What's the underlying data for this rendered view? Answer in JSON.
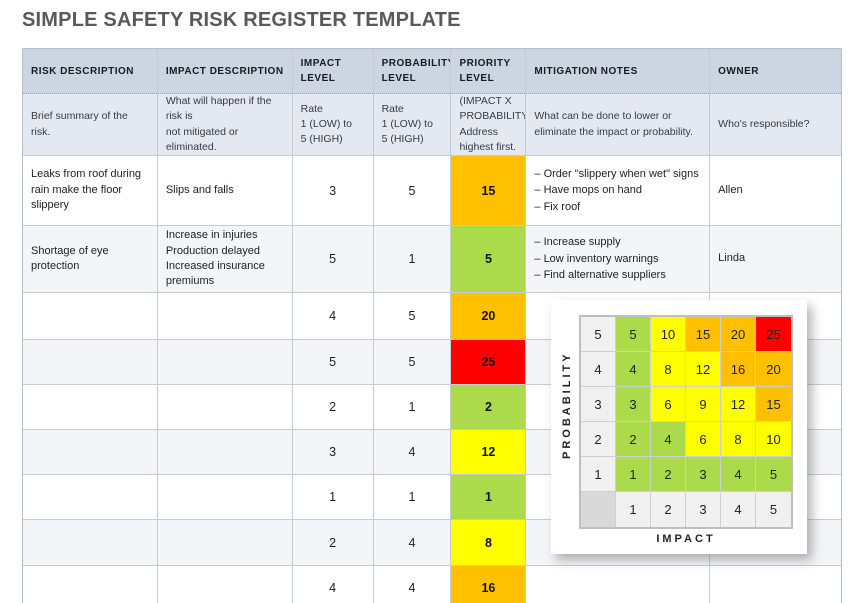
{
  "title": "SIMPLE SAFETY RISK REGISTER TEMPLATE",
  "colors": {
    "green": "#ABDB4B",
    "yellow": "#FFFF00",
    "orange": "#FFC000",
    "red": "#FF0000",
    "header_bg": "#CCD5E2",
    "desc_bg": "#E3E8F1",
    "alt_row_bg": "#F3F5F9"
  },
  "table": {
    "column_keys": [
      "risk-description",
      "impact-description",
      "impact-level",
      "probability-level",
      "priority-level",
      "mitigation-notes",
      "owner"
    ],
    "headers": [
      "RISK DESCRIPTION",
      "IMPACT DESCRIPTION",
      "IMPACT\nLEVEL",
      "PROBABILITY\nLEVEL",
      "PRIORITY\nLEVEL",
      "MITIGATION NOTES",
      "OWNER"
    ],
    "descriptions": [
      "Brief summary of the risk.",
      "What will happen if the risk is\nnot mitigated or eliminated.",
      "Rate\n1 (LOW) to\n5 (HIGH)",
      "Rate\n1 (LOW) to\n5 (HIGH)",
      "(IMPACT X\nPROBABILITY)\nAddress\nhighest first.",
      "What can be done to lower or\neliminate the impact or probability.",
      "Who's responsible?"
    ],
    "rows": [
      {
        "risk": "Leaks from roof during\nrain make the floor\nslippery",
        "impact_description": "Slips and falls",
        "impact_level": "3",
        "probability_level": "5",
        "priority_level": "15",
        "priority_color": "orange",
        "mitigation_notes": "– Order \"slippery when wet\" signs\n– Have mops on hand\n– Fix roof",
        "owner": "Allen"
      },
      {
        "risk": "Shortage of eye\nprotection",
        "impact_description": "Increase in injuries\nProduction delayed\nIncreased insurance\npremiums",
        "impact_level": "5",
        "probability_level": "1",
        "priority_level": "5",
        "priority_color": "green",
        "mitigation_notes": "– Increase supply\n– Low inventory warnings\n– Find alternative suppliers",
        "owner": "Linda"
      },
      {
        "risk": "",
        "impact_description": "",
        "impact_level": "4",
        "probability_level": "5",
        "priority_level": "20",
        "priority_color": "orange",
        "mitigation_notes": "",
        "owner": ""
      },
      {
        "risk": "",
        "impact_description": "",
        "impact_level": "5",
        "probability_level": "5",
        "priority_level": "25",
        "priority_color": "red",
        "mitigation_notes": "",
        "owner": ""
      },
      {
        "risk": "",
        "impact_description": "",
        "impact_level": "2",
        "probability_level": "1",
        "priority_level": "2",
        "priority_color": "green",
        "mitigation_notes": "",
        "owner": ""
      },
      {
        "risk": "",
        "impact_description": "",
        "impact_level": "3",
        "probability_level": "4",
        "priority_level": "12",
        "priority_color": "yellow",
        "mitigation_notes": "",
        "owner": ""
      },
      {
        "risk": "",
        "impact_description": "",
        "impact_level": "1",
        "probability_level": "1",
        "priority_level": "1",
        "priority_color": "green",
        "mitigation_notes": "",
        "owner": ""
      },
      {
        "risk": "",
        "impact_description": "",
        "impact_level": "2",
        "probability_level": "4",
        "priority_level": "8",
        "priority_color": "yellow",
        "mitigation_notes": "",
        "owner": ""
      },
      {
        "risk": "",
        "impact_description": "",
        "impact_level": "4",
        "probability_level": "4",
        "priority_level": "16",
        "priority_color": "orange",
        "mitigation_notes": "",
        "owner": ""
      }
    ]
  },
  "matrix": {
    "y_axis_label": "PROBABILITY",
    "x_axis_label": "IMPACT",
    "impact_axis": [
      "1",
      "2",
      "3",
      "4",
      "5"
    ],
    "rows": [
      {
        "prob": "5",
        "cells": [
          {
            "v": "5",
            "c": "green"
          },
          {
            "v": "10",
            "c": "yellow"
          },
          {
            "v": "15",
            "c": "orange"
          },
          {
            "v": "20",
            "c": "orange"
          },
          {
            "v": "25",
            "c": "red"
          }
        ]
      },
      {
        "prob": "4",
        "cells": [
          {
            "v": "4",
            "c": "green"
          },
          {
            "v": "8",
            "c": "yellow"
          },
          {
            "v": "12",
            "c": "yellow"
          },
          {
            "v": "16",
            "c": "orange"
          },
          {
            "v": "20",
            "c": "orange"
          }
        ]
      },
      {
        "prob": "3",
        "cells": [
          {
            "v": "3",
            "c": "green"
          },
          {
            "v": "6",
            "c": "yellow"
          },
          {
            "v": "9",
            "c": "yellow"
          },
          {
            "v": "12",
            "c": "yellow"
          },
          {
            "v": "15",
            "c": "orange"
          }
        ]
      },
      {
        "prob": "2",
        "cells": [
          {
            "v": "2",
            "c": "green"
          },
          {
            "v": "4",
            "c": "green"
          },
          {
            "v": "6",
            "c": "yellow"
          },
          {
            "v": "8",
            "c": "yellow"
          },
          {
            "v": "10",
            "c": "yellow"
          }
        ]
      },
      {
        "prob": "1",
        "cells": [
          {
            "v": "1",
            "c": "green"
          },
          {
            "v": "2",
            "c": "green"
          },
          {
            "v": "3",
            "c": "green"
          },
          {
            "v": "4",
            "c": "green"
          },
          {
            "v": "5",
            "c": "green"
          }
        ]
      }
    ]
  }
}
